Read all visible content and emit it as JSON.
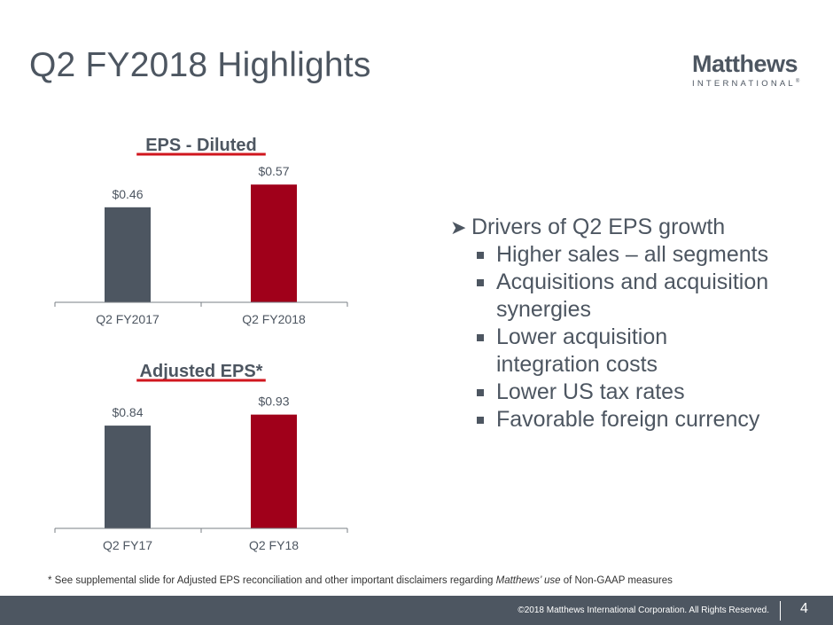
{
  "slide": {
    "title": "Q2 FY2018 Highlights",
    "logo": {
      "name": "Matthews",
      "subtitle": "INTERNATIONAL",
      "mark": "®"
    },
    "bullets": {
      "heading": "Drivers of Q2 EPS growth",
      "items": [
        "Higher sales – all segments",
        "Acquisitions and acquisition synergies",
        "Lower acquisition integration costs",
        "Lower US tax rates",
        "Favorable foreign currency"
      ]
    },
    "footnote": {
      "prefix": "* See supplemental slide for Adjusted EPS reconciliation and other important disclaimers regarding ",
      "italic": "Matthews’ use",
      "suffix": " of Non-GAAP measures"
    },
    "footer": {
      "copyright": "©2018 Matthews International Corporation. All Rights Reserved.",
      "page_number": "4"
    },
    "colors": {
      "gray": "#4d5661",
      "red": "#a0001a",
      "accent_underline": "#d0161e"
    }
  },
  "chart_data": [
    {
      "type": "bar",
      "title": "EPS - Diluted",
      "categories": [
        "Q2 FY2017",
        "Q2 FY2018"
      ],
      "values": [
        0.46,
        0.57
      ],
      "data_labels": [
        "$0.46",
        "$0.57"
      ],
      "bar_colors": [
        "#4d5661",
        "#a0001a"
      ],
      "xlabel": "",
      "ylabel": "",
      "ylim": [
        0,
        0.6
      ],
      "grid": false,
      "legend": "none"
    },
    {
      "type": "bar",
      "title": "Adjusted EPS*",
      "categories": [
        "Q2 FY17",
        "Q2 FY18"
      ],
      "values": [
        0.84,
        0.93
      ],
      "data_labels": [
        "$0.84",
        "$0.93"
      ],
      "bar_colors": [
        "#4d5661",
        "#a0001a"
      ],
      "xlabel": "",
      "ylabel": "",
      "ylim": [
        0,
        1.0
      ],
      "grid": false,
      "legend": "none"
    }
  ]
}
